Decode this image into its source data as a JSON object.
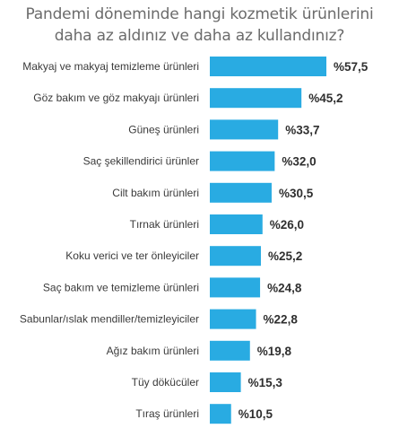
{
  "chart_data": {
    "type": "bar",
    "orientation": "horizontal",
    "title_lines": [
      "Pandemi döneminde hangi kozmetik ürünlerini",
      "daha az aldınız ve daha az kullandınız?"
    ],
    "categories": [
      "Makyaj ve makyaj temizleme ürünleri",
      "Göz bakım ve göz makyajı ürünleri",
      "Güneş ürünleri",
      "Saç şekillendirici ürünler",
      "Cilt bakım ürünleri",
      "Tırnak ürünleri",
      "Koku verici ve ter önleyiciler",
      "Saç bakım ve temizleme ürünleri",
      "Sabunlar/ıslak mendiller/temizleyiciler",
      "Ağız bakım ürünleri",
      "Tüy dökücüler",
      "Tıraş ürünleri"
    ],
    "values": [
      57.5,
      45.2,
      33.7,
      32.0,
      30.5,
      26.0,
      25.2,
      24.8,
      22.8,
      19.8,
      15.3,
      10.5
    ],
    "value_labels": [
      "%57,5",
      "%45,2",
      "%33,7",
      "%32,0",
      "%30,5",
      "%26,0",
      "%25,2",
      "%24,8",
      "%22,8",
      "%19,8",
      "%15,3",
      "%10,5"
    ],
    "xlim": [
      0,
      60
    ],
    "bar_color": "#29abe2",
    "grid": false,
    "legend": "none"
  }
}
